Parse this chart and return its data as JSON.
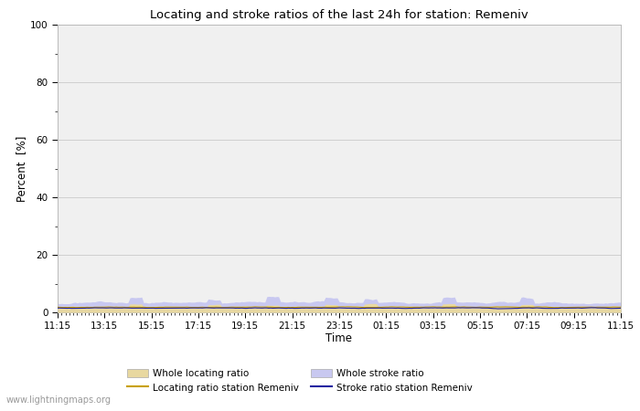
{
  "title": "Locating and stroke ratios of the last 24h for station: Remeniv",
  "xlabel": "Time",
  "ylabel": "Percent  [%]",
  "xlim_labels": [
    "11:15",
    "13:15",
    "15:15",
    "17:15",
    "19:15",
    "21:15",
    "23:15",
    "01:15",
    "03:15",
    "05:15",
    "07:15",
    "09:15",
    "11:15"
  ],
  "ylim": [
    0,
    100
  ],
  "yticks": [
    0,
    20,
    40,
    60,
    80,
    100
  ],
  "yticks_minor": [
    10,
    30,
    50,
    70,
    90
  ],
  "background_color": "#ffffff",
  "plot_background": "#f0f0f0",
  "grid_color": "#d0d0d0",
  "whole_locating_color": "#e8d8a0",
  "whole_stroke_color": "#c8c8f0",
  "locating_line_color": "#c8a000",
  "stroke_line_color": "#2020a0",
  "watermark": "www.lightningmaps.org",
  "num_points": 289,
  "whole_locating_base": 1.8,
  "whole_stroke_base": 3.5,
  "locating_line_base": 1.8,
  "stroke_line_base": 1.5
}
